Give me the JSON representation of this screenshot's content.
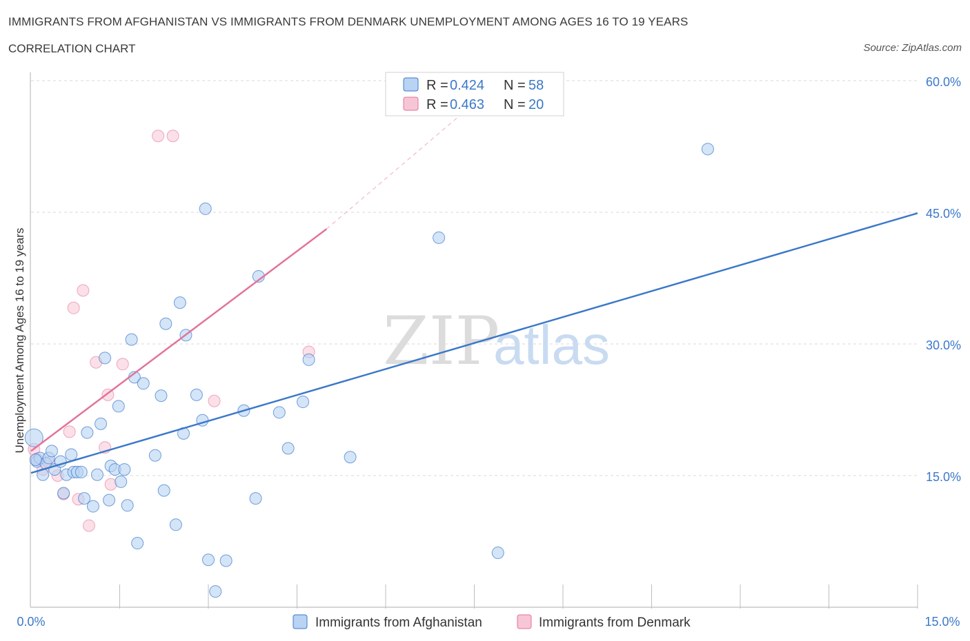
{
  "header": {
    "title": "IMMIGRANTS FROM AFGHANISTAN VS IMMIGRANTS FROM DENMARK UNEMPLOYMENT AMONG AGES 16 TO 19 YEARS",
    "subtitle": "CORRELATION CHART",
    "source": "Source: ZipAtlas.com"
  },
  "watermark": {
    "zip": "ZIP",
    "atlas": "atlas"
  },
  "colors": {
    "afghanistan": "#3b78c9",
    "afghanistan_fill": "#b8d3f3",
    "denmark": "#e2739b",
    "denmark_fill": "#f7c6d6",
    "tick_label": "#3b78c9",
    "grid": "#d8d8d8"
  },
  "legend": {
    "rows": [
      {
        "r_label": "R = ",
        "r_value": "0.424",
        "n_label": "N = ",
        "n_value": "58"
      },
      {
        "r_label": "R = ",
        "r_value": "0.463",
        "n_label": "N = ",
        "n_value": "20"
      }
    ]
  },
  "bottom_legend": {
    "afghanistan": "Immigrants from Afghanistan",
    "denmark": "Immigrants from Denmark"
  },
  "chart_data": {
    "type": "scatter",
    "title": "IMMIGRANTS FROM AFGHANISTAN VS IMMIGRANTS FROM DENMARK UNEMPLOYMENT AMONG AGES 16 TO 19 YEARS",
    "xlabel": "",
    "ylabel": "Unemployment Among Ages 16 to 19 years",
    "xlim": [
      0,
      15
    ],
    "ylim": [
      0,
      60
    ],
    "x_tick_labels": {
      "min": "0.0%",
      "max": "15.0%"
    },
    "y_ticks": [
      {
        "value": 15,
        "label": "15.0%"
      },
      {
        "value": 30,
        "label": "30.0%"
      },
      {
        "value": 45,
        "label": "45.0%"
      },
      {
        "value": 60,
        "label": "60.0%"
      }
    ],
    "series": [
      {
        "name": "Immigrants from Afghanistan",
        "R": 0.424,
        "N": 58,
        "trend": {
          "x": [
            0.0,
            15.0
          ],
          "y": [
            15.3,
            44.9
          ]
        },
        "points": [
          [
            0.05,
            19.3
          ],
          [
            0.1,
            16.6
          ],
          [
            0.15,
            17.0
          ],
          [
            0.2,
            15.1
          ],
          [
            0.25,
            16.4
          ],
          [
            0.3,
            17.0
          ],
          [
            0.35,
            17.8
          ],
          [
            0.4,
            15.7
          ],
          [
            0.5,
            16.6
          ],
          [
            0.55,
            13.0
          ],
          [
            0.6,
            15.1
          ],
          [
            0.68,
            17.4
          ],
          [
            0.72,
            15.4
          ],
          [
            0.78,
            15.4
          ],
          [
            0.85,
            15.4
          ],
          [
            0.9,
            12.4
          ],
          [
            0.95,
            19.9
          ],
          [
            1.05,
            11.5
          ],
          [
            1.12,
            15.1
          ],
          [
            1.18,
            20.9
          ],
          [
            1.25,
            28.4
          ],
          [
            1.32,
            12.2
          ],
          [
            1.35,
            16.1
          ],
          [
            1.42,
            15.7
          ],
          [
            1.48,
            22.9
          ],
          [
            1.52,
            14.3
          ],
          [
            1.58,
            15.7
          ],
          [
            1.63,
            11.6
          ],
          [
            1.7,
            30.5
          ],
          [
            1.75,
            26.2
          ],
          [
            1.8,
            7.3
          ],
          [
            1.9,
            25.5
          ],
          [
            2.1,
            17.3
          ],
          [
            2.2,
            24.1
          ],
          [
            2.25,
            13.3
          ],
          [
            2.28,
            32.3
          ],
          [
            2.45,
            9.4
          ],
          [
            2.52,
            34.7
          ],
          [
            2.58,
            19.8
          ],
          [
            2.62,
            31.0
          ],
          [
            2.8,
            24.2
          ],
          [
            2.9,
            21.3
          ],
          [
            2.95,
            45.4
          ],
          [
            3.0,
            5.4
          ],
          [
            3.12,
            1.8
          ],
          [
            3.3,
            5.3
          ],
          [
            3.6,
            22.4
          ],
          [
            3.8,
            12.4
          ],
          [
            3.85,
            37.7
          ],
          [
            4.2,
            22.2
          ],
          [
            4.35,
            18.1
          ],
          [
            4.6,
            23.4
          ],
          [
            4.7,
            28.2
          ],
          [
            5.4,
            17.1
          ],
          [
            6.9,
            42.1
          ],
          [
            7.9,
            6.2
          ],
          [
            11.45,
            52.2
          ],
          [
            0.08,
            16.8
          ]
        ]
      },
      {
        "name": "Immigrants from Denmark",
        "R": 0.463,
        "N": 20,
        "trend": {
          "x": [
            0.0,
            5.0
          ],
          "y": [
            17.8,
            43.1
          ]
        },
        "trend_extension": {
          "x": [
            5.0,
            7.6
          ],
          "y": [
            43.1,
            58.0
          ]
        },
        "points": [
          [
            0.05,
            18.0
          ],
          [
            0.1,
            16.9
          ],
          [
            0.2,
            15.7
          ],
          [
            0.3,
            16.5
          ],
          [
            0.45,
            15.0
          ],
          [
            0.55,
            12.9
          ],
          [
            0.65,
            20.0
          ],
          [
            0.72,
            34.1
          ],
          [
            0.8,
            12.3
          ],
          [
            0.88,
            36.1
          ],
          [
            0.98,
            9.3
          ],
          [
            1.1,
            27.9
          ],
          [
            1.25,
            18.2
          ],
          [
            1.3,
            24.2
          ],
          [
            1.35,
            14.0
          ],
          [
            1.55,
            27.7
          ],
          [
            2.15,
            53.7
          ],
          [
            2.4,
            53.7
          ],
          [
            3.1,
            23.5
          ],
          [
            4.7,
            29.1
          ]
        ]
      }
    ]
  }
}
